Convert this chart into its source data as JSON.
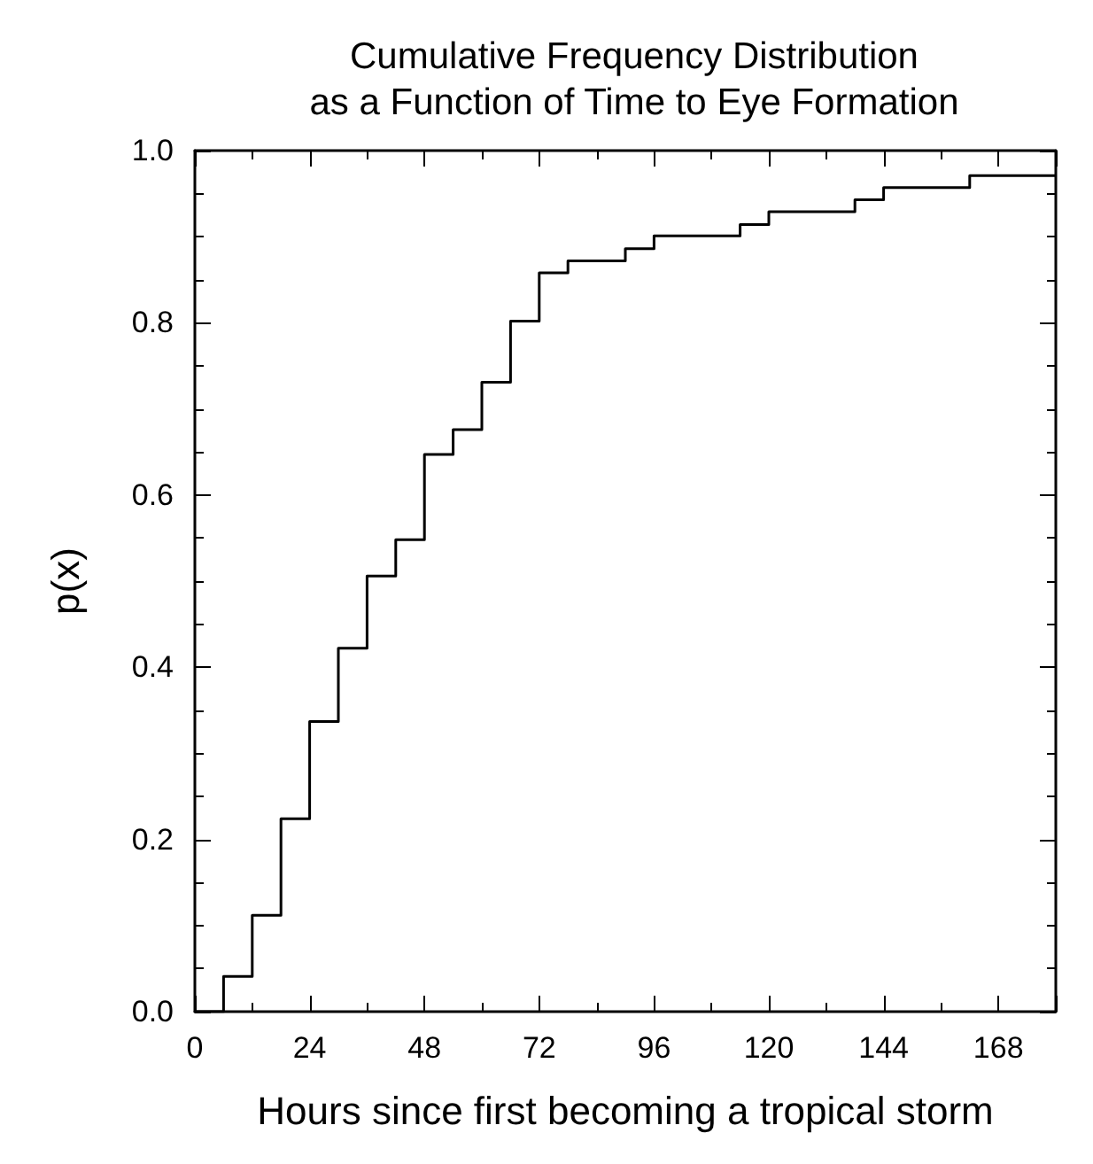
{
  "chart_data": {
    "type": "step",
    "title": "Cumulative Frequency Distribution\nas a Function of Time to Eye Formation",
    "xlabel": "Hours since first becoming a tropical storm",
    "ylabel": "p(x)",
    "x": [
      0,
      6,
      12,
      18,
      24,
      30,
      36,
      42,
      48,
      54,
      60,
      66,
      72,
      78,
      90,
      96,
      114,
      120,
      138,
      144,
      162,
      180
    ],
    "series": [
      {
        "color": "#000000",
        "values": [
          0,
          0.041,
          0.112,
          0.224,
          0.337,
          0.422,
          0.506,
          0.548,
          0.647,
          0.676,
          0.731,
          0.802,
          0.858,
          0.872,
          0.886,
          0.901,
          0.914,
          0.929,
          0.943,
          0.957,
          0.971,
          0.971
        ]
      }
    ],
    "xlim": [
      0,
      180
    ],
    "xticks": [
      0,
      24,
      48,
      72,
      96,
      120,
      144,
      168
    ],
    "ylim": [
      0,
      1
    ],
    "yticks": [
      {
        "value": 0,
        "label": "0.0"
      },
      {
        "value": 0.2,
        "label": "0.2"
      },
      {
        "value": 0.4,
        "label": "0.4"
      },
      {
        "value": 0.6,
        "label": "0.6"
      },
      {
        "value": 0.8,
        "label": "0.8"
      },
      {
        "value": 1,
        "label": "1.0"
      }
    ],
    "grid": false,
    "marker": "none",
    "line_style": "solid"
  }
}
